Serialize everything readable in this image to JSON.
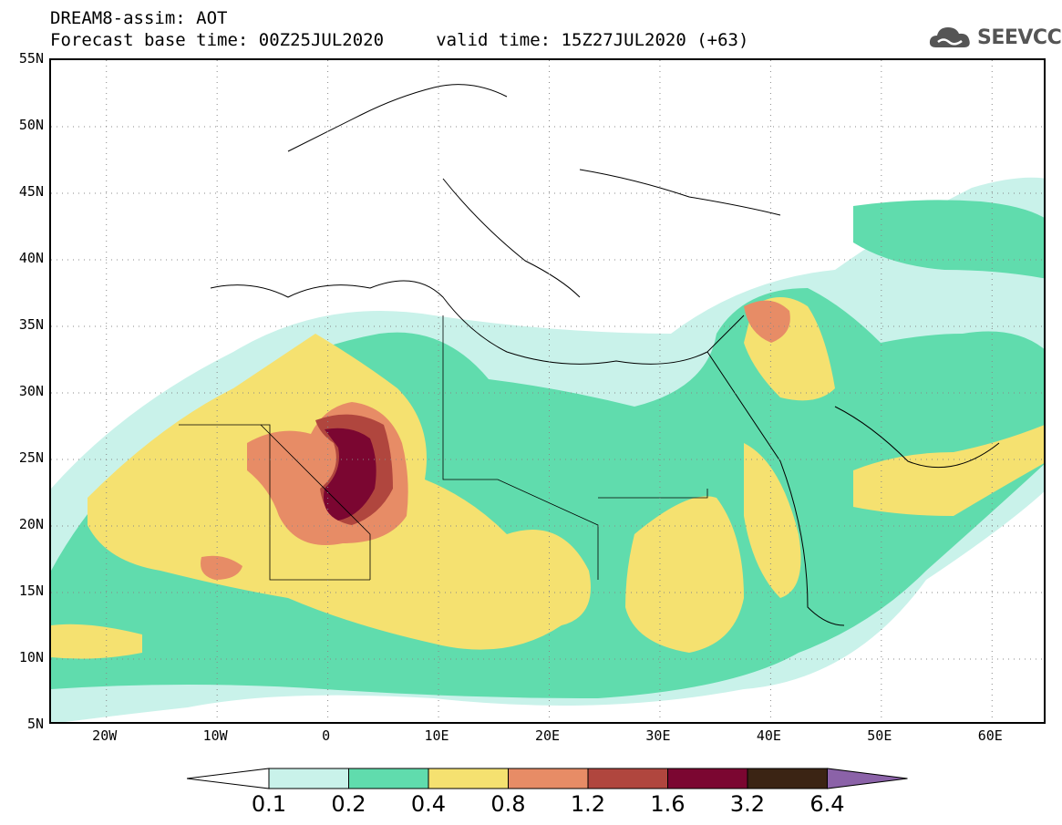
{
  "title": {
    "line1": "DREAM8-assim: AOT",
    "line2": "Forecast base time: 00Z25JUL2020     valid time: 15Z27JUL2020 (+63)"
  },
  "logo": {
    "text": "SEEVCCC",
    "icon": "cloud-icon"
  },
  "map": {
    "lat_labels": [
      "55N",
      "50N",
      "45N",
      "40N",
      "35N",
      "30N",
      "25N",
      "20N",
      "15N",
      "10N",
      "5N"
    ],
    "lon_labels": [
      "20W",
      "10W",
      "0",
      "10E",
      "20E",
      "30E",
      "40E",
      "50E",
      "60E"
    ],
    "lon_range": [
      -25,
      65
    ],
    "lat_range": [
      5,
      55
    ],
    "gridlines": "dotted"
  },
  "colorbar": {
    "levels": [
      "0.1",
      "0.2",
      "0.4",
      "0.8",
      "1.2",
      "1.6",
      "3.2",
      "6.4"
    ],
    "colors": [
      "#c9f2ea",
      "#60dcad",
      "#f5e170",
      "#e78c66",
      "#b0463e",
      "#7b0631",
      "#3b2414"
    ],
    "under_color": "#ffffff",
    "over_color": "#8b62a8"
  }
}
